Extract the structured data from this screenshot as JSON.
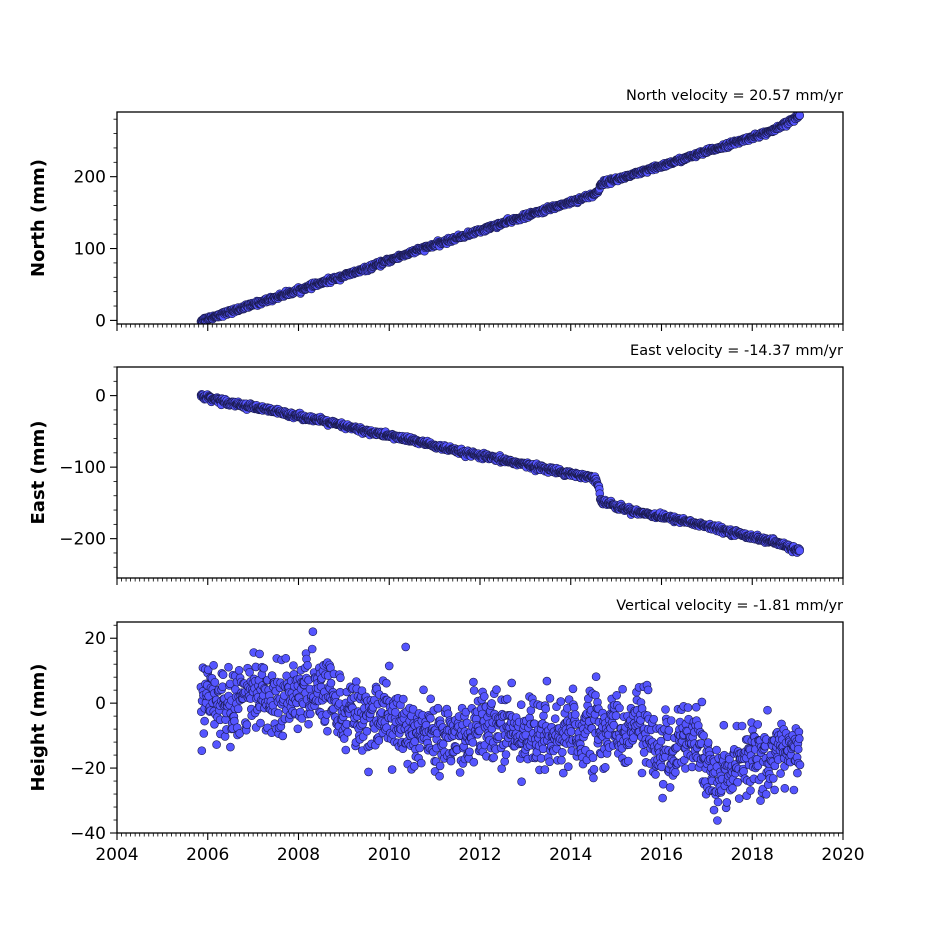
{
  "chart_data": [
    {
      "type": "scatter",
      "panel": "north",
      "title": "North velocity = 20.57 mm/yr",
      "ylabel": "North (mm)",
      "xlim": [
        2004,
        2020
      ],
      "ylim": [
        -5,
        290
      ],
      "yticks": [
        0,
        100,
        200
      ],
      "ytick_labels": [
        "0",
        "100",
        "200"
      ],
      "show_xtick_labels": false,
      "marker_color": "#5555ff",
      "marker_edge": "#1a1a4d",
      "x_range": [
        2005.85,
        2019.05
      ],
      "series": [
        {
          "x": [
            2005.85,
            2006.5,
            2007.5,
            2008.5,
            2009.5,
            2010.5,
            2011.5,
            2012.5,
            2013.5,
            2014.5,
            2014.62,
            2014.65,
            2015.5,
            2016.5,
            2017.5,
            2018.5,
            2019.05
          ],
          "y": [
            0,
            12,
            32,
            52,
            72,
            95,
            115,
            135,
            155,
            175,
            180,
            190,
            205,
            225,
            245,
            265,
            285
          ]
        }
      ],
      "y_noise": 1.5
    },
    {
      "type": "scatter",
      "panel": "east",
      "title": "East velocity = -14.37 mm/yr",
      "ylabel": "East (mm)",
      "xlim": [
        2004,
        2020
      ],
      "ylim": [
        -255,
        40
      ],
      "yticks": [
        0,
        -100,
        -200
      ],
      "ytick_labels": [
        "0",
        "−100",
        "−200"
      ],
      "show_xtick_labels": false,
      "marker_color": "#5555ff",
      "marker_edge": "#1a1a4d",
      "x_range": [
        2005.85,
        2019.05
      ],
      "series": [
        {
          "x": [
            2005.85,
            2006.5,
            2007.5,
            2008.5,
            2009.5,
            2010.5,
            2011.5,
            2012.5,
            2013.5,
            2014.5,
            2014.62,
            2014.65,
            2015.0,
            2015.5,
            2016.5,
            2017.5,
            2018.5,
            2019.05
          ],
          "y": [
            0,
            -10,
            -22,
            -35,
            -50,
            -62,
            -78,
            -90,
            -103,
            -115,
            -125,
            -145,
            -155,
            -163,
            -175,
            -190,
            -205,
            -217
          ]
        }
      ],
      "y_noise": 1.8
    },
    {
      "type": "scatter",
      "panel": "height",
      "title": "Vertical velocity = -1.81 mm/yr",
      "ylabel": "Height (mm)",
      "xlim": [
        2004,
        2020
      ],
      "ylim": [
        -40,
        25
      ],
      "yticks": [
        20,
        0,
        -20,
        -40
      ],
      "ytick_labels": [
        "20",
        "0",
        "−20",
        "−40"
      ],
      "xticks": [
        2004,
        2006,
        2008,
        2010,
        2012,
        2014,
        2016,
        2018,
        2020
      ],
      "xtick_labels": [
        "2004",
        "2006",
        "2008",
        "2010",
        "2012",
        "2014",
        "2016",
        "2018",
        "2020"
      ],
      "show_xtick_labels": true,
      "marker_color": "#5555ff",
      "marker_edge": "#1a1a4d",
      "x_range": [
        2005.85,
        2019.05
      ],
      "series": [
        {
          "x": [
            2005.85,
            2006.5,
            2007.5,
            2008.5,
            2009.0,
            2010.0,
            2011.0,
            2012.0,
            2013.0,
            2014.0,
            2015.0,
            2015.5,
            2016.2,
            2016.8,
            2017.2,
            2017.6,
            2018.5,
            2019.05
          ],
          "y": [
            0,
            2,
            3,
            4,
            -2,
            -6,
            -10,
            -8,
            -9,
            -9,
            -8,
            -8,
            -15,
            -12,
            -25,
            -18,
            -15,
            -15
          ]
        }
      ],
      "y_noise": 5.5
    }
  ]
}
